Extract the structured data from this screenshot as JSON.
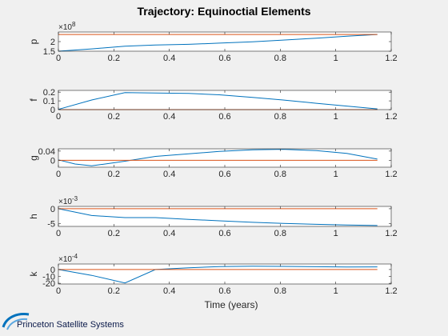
{
  "figure_title": "Trajectory: Equinoctial Elements",
  "xlabel": "Time (years)",
  "logo_text": "Princeton Satellite Systems",
  "colors": {
    "trajectory": "#0072bd",
    "reference": "#d95319",
    "background": "#f0f0f0"
  },
  "chart_data": [
    {
      "type": "line",
      "ylabel": "p",
      "exponent_label": "×10",
      "exponent_power": "8",
      "xlim": [
        0,
        1.2
      ],
      "ylim": [
        1.5,
        2.5
      ],
      "xticks": [
        "0",
        "0.2",
        "0.4",
        "0.6",
        "0.8",
        "1",
        "1.2"
      ],
      "yticks": [
        {
          "v": 1.5,
          "label": "1.5"
        },
        {
          "v": 2.0,
          "label": "2"
        }
      ],
      "series": [
        {
          "x": [
            0,
            0.12,
            0.24,
            0.35,
            0.47,
            0.58,
            0.7,
            0.81,
            0.93,
            1.04,
            1.15
          ],
          "y": [
            1.5,
            1.62,
            1.76,
            1.82,
            1.86,
            1.92,
            1.99,
            2.08,
            2.18,
            2.28,
            2.37
          ]
        },
        {
          "x": [
            0,
            1.15
          ],
          "y": [
            2.37,
            2.37
          ]
        }
      ]
    },
    {
      "type": "line",
      "ylabel": "f",
      "xlim": [
        0,
        1.2
      ],
      "ylim": [
        0,
        0.22
      ],
      "xticks": [
        "0",
        "0.2",
        "0.4",
        "0.6",
        "0.8",
        "1",
        "1.2"
      ],
      "yticks": [
        {
          "v": 0,
          "label": "0"
        },
        {
          "v": 0.1,
          "label": "0.1"
        },
        {
          "v": 0.2,
          "label": "0.2"
        }
      ],
      "series": [
        {
          "x": [
            0,
            0.12,
            0.24,
            0.35,
            0.47,
            0.58,
            0.7,
            0.81,
            0.93,
            1.04,
            1.15
          ],
          "y": [
            0.003,
            0.11,
            0.195,
            0.19,
            0.185,
            0.17,
            0.14,
            0.11,
            0.072,
            0.04,
            0.008
          ]
        },
        {
          "x": [
            0,
            1.15
          ],
          "y": [
            0.0,
            0.0
          ]
        }
      ]
    },
    {
      "type": "line",
      "ylabel": "g",
      "xlim": [
        0,
        1.2
      ],
      "ylim": [
        -0.03,
        0.05
      ],
      "xticks": [
        "0",
        "0.2",
        "0.4",
        "0.6",
        "0.8",
        "1",
        "1.2"
      ],
      "yticks": [
        {
          "v": 0,
          "label": "0"
        },
        {
          "v": 0.04,
          "label": "0.04"
        }
      ],
      "series": [
        {
          "x": [
            0,
            0.06,
            0.12,
            0.24,
            0.35,
            0.47,
            0.58,
            0.7,
            0.81,
            0.93,
            1.04,
            1.15
          ],
          "y": [
            0.002,
            -0.016,
            -0.024,
            -0.004,
            0.017,
            0.028,
            0.039,
            0.046,
            0.048,
            0.042,
            0.03,
            0.005
          ]
        },
        {
          "x": [
            0,
            1.15
          ],
          "y": [
            0.0,
            0.0
          ]
        }
      ]
    },
    {
      "type": "line",
      "ylabel": "h",
      "exponent_label": "×10",
      "exponent_power": "-3",
      "xlim": [
        0,
        1.2
      ],
      "ylim": [
        -6,
        0.8
      ],
      "xticks": [
        "0",
        "0.2",
        "0.4",
        "0.6",
        "0.8",
        "1",
        "1.2"
      ],
      "yticks": [
        {
          "v": -5,
          "label": "-5"
        },
        {
          "v": 0,
          "label": "0"
        }
      ],
      "series": [
        {
          "x": [
            0,
            0.12,
            0.24,
            0.35,
            0.47,
            0.58,
            0.7,
            0.81,
            0.93,
            1.04,
            1.15
          ],
          "y": [
            0,
            -2.3,
            -3.0,
            -3.0,
            -3.6,
            -4.1,
            -4.6,
            -5.0,
            -5.3,
            -5.5,
            -5.7
          ]
        },
        {
          "x": [
            0,
            1.15
          ],
          "y": [
            0.0,
            0.0
          ]
        }
      ]
    },
    {
      "type": "line",
      "ylabel": "k",
      "exponent_label": "×10",
      "exponent_power": "-4",
      "xlim": [
        0,
        1.2
      ],
      "ylim": [
        -21,
        8
      ],
      "xticks": [
        "0",
        "0.2",
        "0.4",
        "0.6",
        "0.8",
        "1",
        "1.2"
      ],
      "yticks": [
        {
          "v": -20,
          "label": "-20"
        },
        {
          "v": -10,
          "label": "-10"
        },
        {
          "v": 0,
          "label": "0"
        }
      ],
      "series": [
        {
          "x": [
            0,
            0.12,
            0.24,
            0.35,
            0.47,
            0.58,
            0.7,
            0.81,
            0.93,
            1.04,
            1.15
          ],
          "y": [
            0,
            -8.5,
            -19.5,
            0,
            2.5,
            4.3,
            4.7,
            4.5,
            4.0,
            3.6,
            3.8
          ]
        },
        {
          "x": [
            0,
            1.15
          ],
          "y": [
            0.0,
            0.0
          ]
        }
      ]
    }
  ]
}
